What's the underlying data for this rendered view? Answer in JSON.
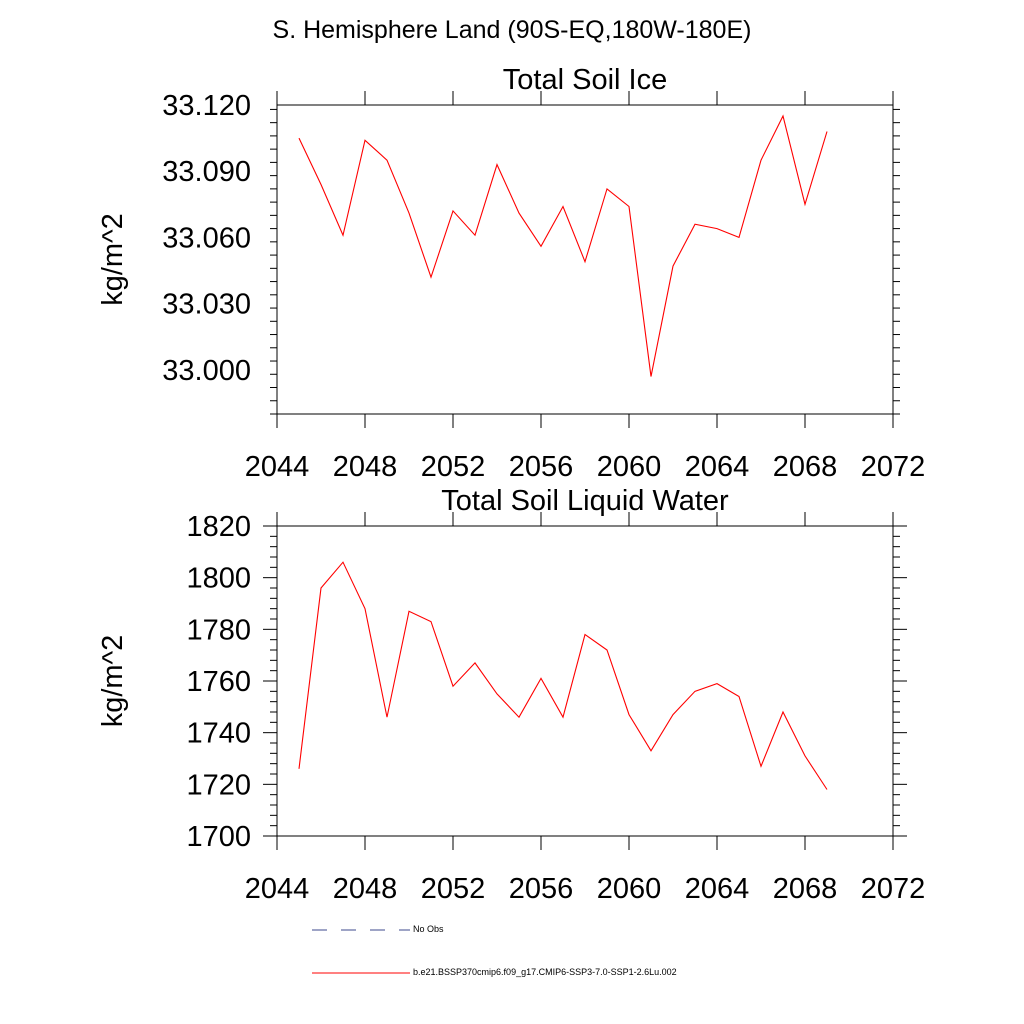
{
  "figure": {
    "title": "S. Hemisphere Land (90S-EQ,180W-180E)"
  },
  "chart_data": [
    {
      "type": "line",
      "title": "Total Soil Ice",
      "ylabel": "kg/m^2",
      "xlabel": "",
      "xlim": [
        2044,
        2072
      ],
      "ylim": [
        32.98,
        33.12
      ],
      "xticks": [
        2044,
        2048,
        2052,
        2056,
        2060,
        2064,
        2068,
        2072
      ],
      "yticks": [
        33.0,
        33.03,
        33.06,
        33.09,
        33.12
      ],
      "ytick_labels": [
        "33.000",
        "33.030",
        "33.060",
        "33.090",
        "33.120"
      ],
      "grid": false,
      "series": [
        {
          "name": "b.e21.BSSP370cmip6.f09_g17.CMIP6-SSP3-7.0-SSP1-2.6Lu.002",
          "color": "#ff0000",
          "x": [
            2045,
            2046,
            2047,
            2048,
            2049,
            2050,
            2051,
            2052,
            2053,
            2054,
            2055,
            2056,
            2057,
            2058,
            2059,
            2060,
            2061,
            2062,
            2063,
            2064,
            2065,
            2066,
            2067,
            2068,
            2069
          ],
          "values": [
            33.105,
            33.084,
            33.061,
            33.104,
            33.095,
            33.071,
            33.042,
            33.072,
            33.061,
            33.093,
            33.071,
            33.056,
            33.074,
            33.049,
            33.082,
            33.074,
            32.997,
            33.047,
            33.066,
            33.064,
            33.06,
            33.095,
            33.115,
            33.075,
            33.108
          ]
        }
      ]
    },
    {
      "type": "line",
      "title": "Total Soil Liquid Water",
      "ylabel": "kg/m^2",
      "xlabel": "",
      "xlim": [
        2044,
        2072
      ],
      "ylim": [
        1700,
        1820
      ],
      "xticks": [
        2044,
        2048,
        2052,
        2056,
        2060,
        2064,
        2068,
        2072
      ],
      "yticks": [
        1700,
        1720,
        1740,
        1760,
        1780,
        1800,
        1820
      ],
      "ytick_labels": [
        "1700",
        "1720",
        "1740",
        "1760",
        "1780",
        "1800",
        "1820"
      ],
      "grid": false,
      "series": [
        {
          "name": "b.e21.BSSP370cmip6.f09_g17.CMIP6-SSP3-7.0-SSP1-2.6Lu.002",
          "color": "#ff0000",
          "x": [
            2045,
            2046,
            2047,
            2048,
            2049,
            2050,
            2051,
            2052,
            2053,
            2054,
            2055,
            2056,
            2057,
            2058,
            2059,
            2060,
            2061,
            2062,
            2063,
            2064,
            2065,
            2066,
            2067,
            2068,
            2069
          ],
          "values": [
            1726,
            1796,
            1806,
            1788,
            1746,
            1787,
            1783,
            1758,
            1767,
            1755,
            1746,
            1761,
            1746,
            1778,
            1772,
            1747,
            1733,
            1747,
            1756,
            1759,
            1754,
            1727,
            1748,
            1731,
            1718
          ]
        }
      ]
    }
  ],
  "legend": [
    {
      "label": "No Obs",
      "style": "dashed",
      "color": "#3c4a8c"
    },
    {
      "label": "b.e21.BSSP370cmip6.f09_g17.CMIP6-SSP3-7.0-SSP1-2.6Lu.002",
      "style": "solid",
      "color": "#ff0000"
    }
  ]
}
